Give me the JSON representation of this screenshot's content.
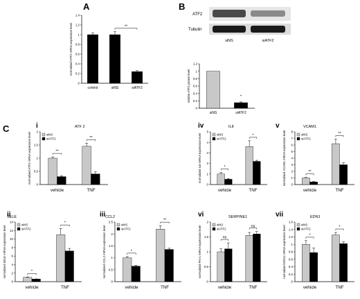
{
  "panel_letters": {
    "A": "A",
    "B": "B",
    "C": "C"
  },
  "blot": {
    "atf2_label": "ATF2",
    "tubulin_label": "Tubulin",
    "lanes": [
      "siNS",
      "siATF2"
    ]
  },
  "chart_data": [
    {
      "id": "A",
      "type": "bar",
      "title": "",
      "categories": [
        "control",
        "siNS",
        "siATF2"
      ],
      "values": [
        1.0,
        1.0,
        0.24
      ],
      "errors": [
        0.04,
        0.06,
        0.02
      ],
      "colors": [
        "#000000",
        "#000000",
        "#000000"
      ],
      "ylabel": "normalized ATF2 mRNA expression level",
      "ylim": [
        0,
        1.4
      ],
      "yticks": [
        0,
        0.2,
        0.4,
        0.6,
        0.8,
        1,
        1.2,
        1.4
      ],
      "significance": [
        {
          "from": 1,
          "to": 2,
          "label": "**"
        }
      ]
    },
    {
      "id": "B",
      "type": "bar",
      "title": "",
      "categories": [
        "siNS",
        "siATF2"
      ],
      "values": [
        1.0,
        0.15
      ],
      "errors": [
        0.0,
        0.02
      ],
      "colors": [
        "#c8c8c8",
        "#000000"
      ],
      "ylabel": "relative ATF2 protein level",
      "ylim": [
        0,
        1.2
      ],
      "yticks": [
        0,
        0.2,
        0.4,
        0.6,
        0.8,
        1,
        1.2
      ],
      "significance": [
        {
          "from": 1,
          "to": 1,
          "label": "*"
        }
      ]
    },
    {
      "id": "C-i",
      "roman": "i",
      "type": "bar",
      "title": "ATF 2",
      "categories": [
        "vehicle",
        "TNF"
      ],
      "series": [
        {
          "name": "siNS",
          "values": [
            1.0,
            1.45
          ],
          "errors": [
            0.05,
            0.12
          ]
        },
        {
          "name": "siATF2",
          "values": [
            0.3,
            0.4
          ],
          "errors": [
            0.03,
            0.08
          ]
        }
      ],
      "ylabel": "normalized ATF2 mRNA expression level",
      "ylim": [
        0,
        2
      ],
      "yticks": [
        0,
        0.5,
        1,
        1.5,
        2
      ],
      "significance": [
        "**",
        "**"
      ]
    },
    {
      "id": "C-iv",
      "roman": "iv",
      "type": "bar",
      "title": "IL8",
      "categories": [
        "vehicle",
        "TNF"
      ],
      "series": [
        {
          "name": "siNS",
          "values": [
            1.0,
            3.6
          ],
          "errors": [
            0.15,
            0.55
          ]
        },
        {
          "name": "siATF2",
          "values": [
            0.5,
            2.2
          ],
          "errors": [
            0.08,
            0.1
          ]
        }
      ],
      "ylabel": "normalized IL8 mRNA expression level",
      "ylim": [
        0,
        5
      ],
      "yticks": [
        0,
        1,
        2,
        3,
        4,
        5
      ],
      "significance": [
        "*",
        "*"
      ]
    },
    {
      "id": "C-v",
      "roman": "v",
      "type": "bar",
      "title": "VCAM1",
      "categories": [
        "vehicle",
        "TNF"
      ],
      "series": [
        {
          "name": "siNS",
          "values": [
            1.0,
            6.2
          ],
          "errors": [
            0.1,
            0.7
          ]
        },
        {
          "name": "siATF2",
          "values": [
            0.4,
            3.0
          ],
          "errors": [
            0.05,
            0.3
          ]
        }
      ],
      "ylabel": "normalized VCAM1 mRNA expression level",
      "ylim": [
        0,
        8
      ],
      "yticks": [
        0,
        1,
        2,
        3,
        4,
        5,
        6,
        7,
        8
      ],
      "significance": [
        "**",
        "**"
      ]
    },
    {
      "id": "C-ii",
      "roman": "ii",
      "type": "bar",
      "title": "SELE",
      "categories": [
        "vehicle",
        "TNF"
      ],
      "series": [
        {
          "name": "siNS",
          "values": [
            1.0,
            11.0
          ],
          "errors": [
            0.1,
            1.5
          ]
        },
        {
          "name": "siATF2",
          "values": [
            0.6,
            7.2
          ],
          "errors": [
            0.05,
            0.6
          ]
        }
      ],
      "ylabel": "normalized SELE mRNA expression level",
      "ylim": [
        0,
        14
      ],
      "yticks": [
        0,
        2,
        4,
        6,
        8,
        10,
        12,
        14
      ],
      "significance": [
        "*",
        "*"
      ]
    },
    {
      "id": "C-iii",
      "roman": "iii",
      "type": "bar",
      "title": "CCL2",
      "categories": [
        "vehicle",
        "TNF"
      ],
      "series": [
        {
          "name": "siNS",
          "values": [
            1.0,
            2.2
          ],
          "errors": [
            0.05,
            0.15
          ]
        },
        {
          "name": "siATF2",
          "values": [
            0.65,
            1.35
          ],
          "errors": [
            0.04,
            0.05
          ]
        }
      ],
      "ylabel": "normalized CCL2 mRNA expression level",
      "ylim": [
        0,
        2.5
      ],
      "yticks": [
        0,
        0.5,
        1,
        1.5,
        2,
        2.5
      ],
      "significance": [
        "*",
        "**"
      ]
    },
    {
      "id": "C-vi",
      "roman": "vi",
      "type": "bar",
      "title": "SERPINE1",
      "categories": [
        "vehicle",
        "TNF"
      ],
      "series": [
        {
          "name": "siNS",
          "values": [
            1.0,
            1.55
          ],
          "errors": [
            0.1,
            0.1
          ]
        },
        {
          "name": "siATF2",
          "values": [
            1.1,
            1.6
          ],
          "errors": [
            0.2,
            0.08
          ]
        }
      ],
      "ylabel": "normalized PAI-1 mRNA expression level",
      "ylim": [
        0,
        2
      ],
      "yticks": [
        0,
        0.5,
        1,
        1.5,
        2
      ],
      "significance": [
        "ns",
        "ns"
      ]
    },
    {
      "id": "C-vii",
      "roman": "vii",
      "type": "bar",
      "title": "EDN1",
      "categories": [
        "vehicle",
        "TNF"
      ],
      "series": [
        {
          "name": "siNS",
          "values": [
            1.0,
            1.25
          ],
          "errors": [
            0.1,
            0.07
          ]
        },
        {
          "name": "siATF2",
          "values": [
            0.78,
            1.02
          ],
          "errors": [
            0.12,
            0.05
          ]
        }
      ],
      "ylabel": "normalized EDN1 mRNA expression level",
      "ylim": [
        0,
        1.6
      ],
      "yticks": [
        0,
        0.2,
        0.4,
        0.6,
        0.8,
        1,
        1.2,
        1.4,
        1.6
      ],
      "significance": [
        "*",
        "*"
      ]
    }
  ]
}
